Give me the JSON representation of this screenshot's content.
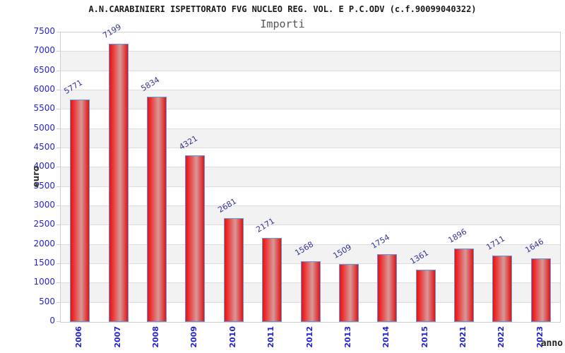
{
  "title": "A.N.CARABINIERI ISPETTORATO FVG NUCLEO REG. VOL. E P.C.ODV (c.f.90099040322)",
  "subtitle": "Importi",
  "chart_data": {
    "type": "bar",
    "title": "Importi",
    "categories": [
      "2006",
      "2007",
      "2008",
      "2009",
      "2010",
      "2011",
      "2012",
      "2013",
      "2014",
      "2015",
      "2021",
      "2022",
      "2023"
    ],
    "values": [
      5771,
      7199,
      5834,
      4321,
      2681,
      2171,
      1568,
      1509,
      1754,
      1361,
      1896,
      1711,
      1646
    ],
    "xlabel": "anno",
    "ylabel": "euro",
    "ylim": [
      0,
      7500
    ],
    "ytick_step": 500,
    "grid": true,
    "legend": false
  },
  "colors": {
    "bar_fill_main": "#e01414",
    "bar_fill_bright": "#ee3030",
    "bar_fill_light": "#d89898",
    "bar_border": "#5f9ae0",
    "tick_label": "#2424cf",
    "value_label": "#333399",
    "axis_label": "#333333",
    "band_gray": "#f2f2f2",
    "gridline": "#dddddd",
    "subtitle_color": "#555555"
  }
}
